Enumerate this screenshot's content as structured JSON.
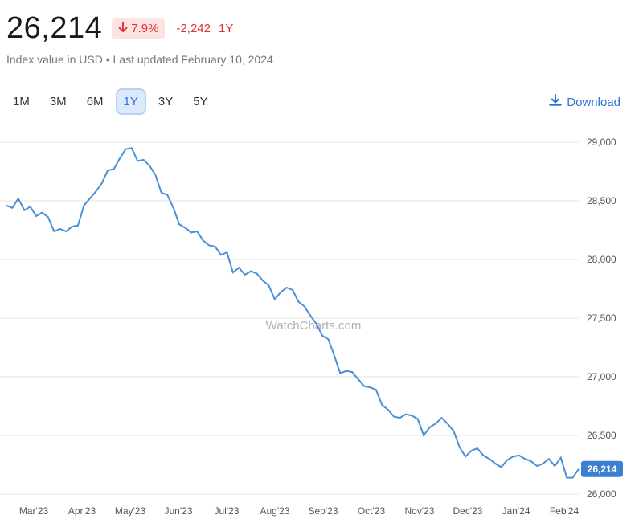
{
  "header": {
    "value": "26,214",
    "change_pct": "7.9%",
    "change_abs": "-2,242",
    "change_period": "1Y",
    "subtitle": "Index value in USD • Last updated February 10, 2024"
  },
  "periods": [
    "1M",
    "3M",
    "6M",
    "1Y",
    "3Y",
    "5Y"
  ],
  "active_period": "1Y",
  "download_label": "Download",
  "colors": {
    "line": "#4a8fd6",
    "negative": "#d33333",
    "badge_bg": "#fde2e2",
    "accent": "#2f72d3"
  },
  "chart_data": {
    "type": "line",
    "watermark": "WatchCharts.com",
    "current_label": "26,214",
    "ylim": [
      26000,
      29000
    ],
    "yticks": [
      26000,
      26500,
      27000,
      27500,
      28000,
      28500,
      29000
    ],
    "ytick_labels": [
      "26,000",
      "26,500",
      "27,000",
      "27,500",
      "28,000",
      "28,500",
      "29,000"
    ],
    "x_labels": [
      "Mar'23",
      "Apr'23",
      "May'23",
      "Jun'23",
      "Jul'23",
      "Aug'23",
      "Sep'23",
      "Oct'23",
      "Nov'23",
      "Dec'23",
      "Jan'24",
      "Feb'24"
    ],
    "grid": true,
    "series": [
      {
        "values": [
          28460,
          28440,
          28520,
          28420,
          28450,
          28370,
          28400,
          28360,
          28240,
          28260,
          28240,
          28280,
          28290,
          28460,
          28520,
          28580,
          28650,
          28760,
          28770,
          28860,
          28940,
          28950,
          28840,
          28850,
          28800,
          28720,
          28570,
          28550,
          28440,
          28300,
          28270,
          28230,
          28240,
          28160,
          28120,
          28110,
          28040,
          28060,
          27890,
          27930,
          27870,
          27900,
          27880,
          27820,
          27780,
          27660,
          27720,
          27760,
          27740,
          27640,
          27600,
          27520,
          27450,
          27350,
          27320,
          27180,
          27030,
          27050,
          27040,
          26980,
          26920,
          26910,
          26890,
          26760,
          26720,
          26660,
          26650,
          26680,
          26670,
          26640,
          26500,
          26570,
          26600,
          26650,
          26600,
          26540,
          26400,
          26320,
          26370,
          26390,
          26330,
          26300,
          26260,
          26230,
          26290,
          26320,
          26330,
          26300,
          26280,
          26240,
          26260,
          26300,
          26240,
          26310,
          26140,
          26140,
          26214
        ]
      }
    ]
  }
}
